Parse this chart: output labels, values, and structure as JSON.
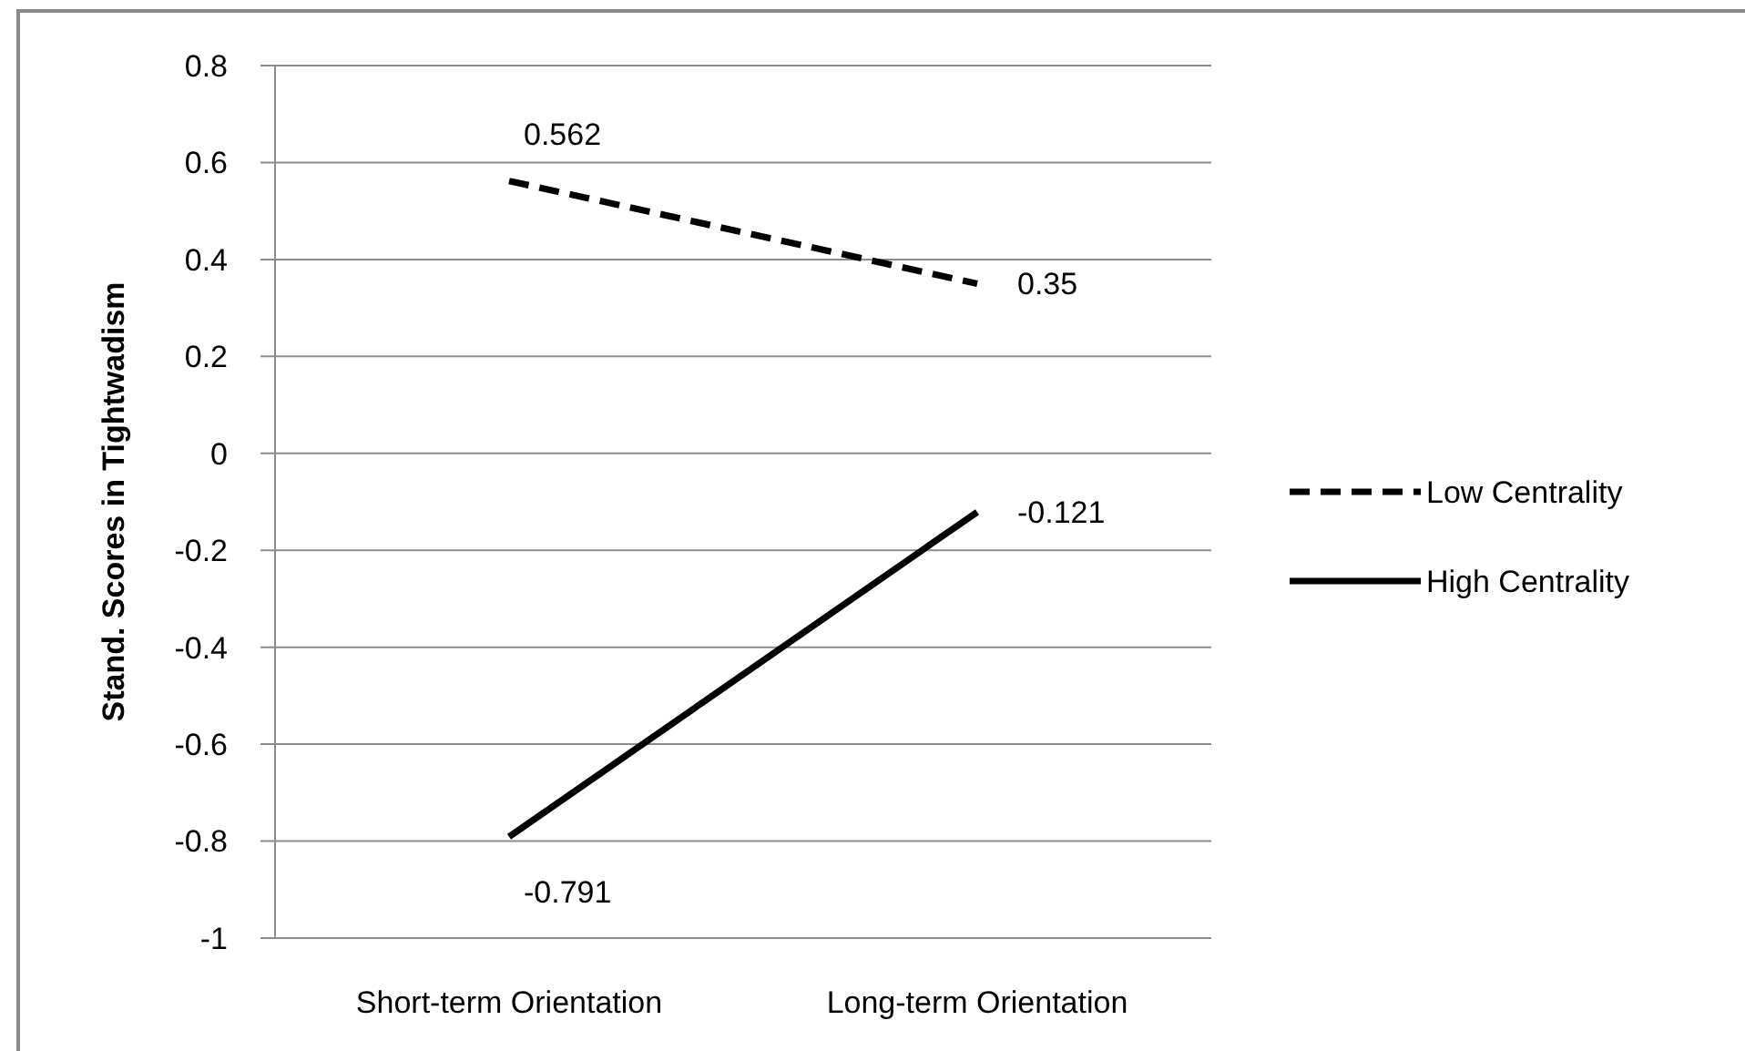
{
  "chart_data": {
    "type": "line",
    "ylabel": "Stand. Scores in Tightwadism",
    "categories": [
      "Short-term Orientation",
      "Long-term Orientation"
    ],
    "series": [
      {
        "name": "Low Centrality",
        "color": "#000000",
        "values": [
          0.562,
          0.35
        ],
        "line_style": "dashed"
      },
      {
        "name": "High Centrality",
        "color": "#000000",
        "values": [
          -0.791,
          -0.121
        ],
        "line_style": "solid"
      }
    ],
    "ylim": [
      -1,
      0.8
    ],
    "yticks": [
      -1,
      -0.8,
      -0.6,
      -0.4,
      -0.2,
      0,
      0.2,
      0.4,
      0.6,
      0.8
    ],
    "grid": "y",
    "legend": "right",
    "data_labels": true
  }
}
